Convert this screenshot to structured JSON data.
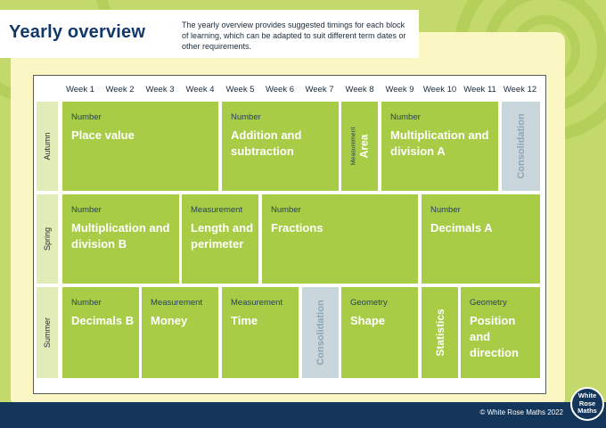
{
  "header": {
    "title": "Yearly overview",
    "intro": "The yearly overview provides suggested timings for each block of learning, which can be adapted to suit different term dates or other requirements."
  },
  "weeks": [
    "Week 1",
    "Week 2",
    "Week 3",
    "Week 4",
    "Week 5",
    "Week 6",
    "Week 7",
    "Week 8",
    "Week 9",
    "Week 10",
    "Week 11",
    "Week 12"
  ],
  "terms": [
    "Autumn",
    "Spring",
    "Summer"
  ],
  "autumn": {
    "place_value": {
      "category": "Number",
      "name": "Place value"
    },
    "addition": {
      "category": "Number",
      "name": "Addition and subtraction"
    },
    "area": {
      "category": "Measurement",
      "name": "Area"
    },
    "multiplication_a": {
      "category": "Number",
      "name": "Multiplication and division A"
    },
    "consolidation": {
      "name": "Consolidation"
    }
  },
  "spring": {
    "multiplication_b": {
      "category": "Number",
      "name": "Multiplication and division B"
    },
    "length": {
      "category": "Measurement",
      "name": "Length and perimeter"
    },
    "fractions": {
      "category": "Number",
      "name": "Fractions"
    },
    "decimals_a": {
      "category": "Number",
      "name": "Decimals A"
    }
  },
  "summer": {
    "decimals_b": {
      "category": "Number",
      "name": "Decimals B"
    },
    "money": {
      "category": "Measurement",
      "name": "Money"
    },
    "time": {
      "category": "Measurement",
      "name": "Time"
    },
    "consolidation": {
      "name": "Consolidation"
    },
    "shape": {
      "category": "Geometry",
      "name": "Shape"
    },
    "statistics": {
      "name": "Statistics"
    },
    "position": {
      "category": "Geometry",
      "name": "Position and direction"
    }
  },
  "footer": {
    "copyright": "© White Rose Maths 2022",
    "logo": [
      "White",
      "Rose",
      "Maths"
    ]
  }
}
